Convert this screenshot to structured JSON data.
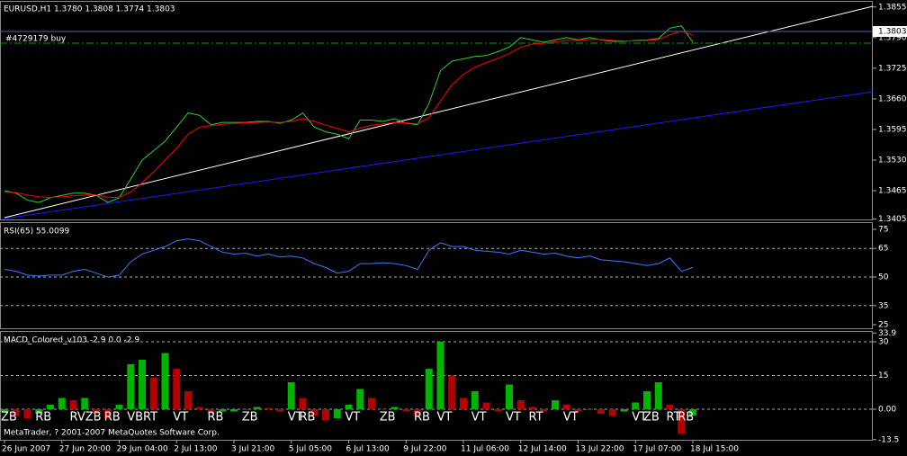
{
  "chart_data": [
    {
      "type": "line",
      "title": "EURUSD,H1  1.3780 1.3808 1.3774 1.3803",
      "series": [
        {
          "color": "#33cc33",
          "values": [
            1.3465,
            1.346,
            1.3445,
            1.344,
            1.345,
            1.3455,
            1.346,
            1.346,
            1.3455,
            1.344,
            1.345,
            1.349,
            1.353,
            1.355,
            1.357,
            1.36,
            1.363,
            1.3625,
            1.3605,
            1.361,
            1.361,
            1.361,
            1.3612,
            1.3612,
            1.3608,
            1.3615,
            1.363,
            1.36,
            1.359,
            1.3585,
            1.3575,
            1.3615,
            1.3615,
            1.3612,
            1.3618,
            1.3608,
            1.3605,
            1.365,
            1.372,
            1.374,
            1.3745,
            1.375,
            1.3752,
            1.376,
            1.377,
            1.379,
            1.3785,
            1.378,
            1.3785,
            1.379,
            1.3785,
            1.379,
            1.3785,
            1.3782,
            1.3782,
            1.3784,
            1.3785,
            1.3788,
            1.381,
            1.3815,
            1.378
          ]
        },
        {
          "color": "#ff0000",
          "values": [
            1.3462,
            1.3461,
            1.3456,
            1.3452,
            1.3451,
            1.3452,
            1.3454,
            1.3456,
            1.3456,
            1.3451,
            1.3451,
            1.3462,
            1.3482,
            1.3505,
            1.353,
            1.3555,
            1.3585,
            1.36,
            1.3603,
            1.3606,
            1.3608,
            1.3609,
            1.361,
            1.3611,
            1.361,
            1.3612,
            1.3618,
            1.3612,
            1.3604,
            1.3597,
            1.359,
            1.3598,
            1.3604,
            1.3607,
            1.361,
            1.3609,
            1.3607,
            1.362,
            1.3655,
            1.369,
            1.3712,
            1.3727,
            1.3737,
            1.3746,
            1.3756,
            1.377,
            1.3776,
            1.3778,
            1.3781,
            1.3784,
            1.3784,
            1.3786,
            1.3786,
            1.3784,
            1.3783,
            1.3783,
            1.3784,
            1.3786,
            1.3796,
            1.3804,
            1.3795
          ]
        }
      ],
      "last_price": 1.3803,
      "order_label": "#4729179 buy",
      "ylim": [
        1.3404,
        1.3866
      ],
      "yticks": [
        1.3405,
        1.3465,
        {
          "value": 1.353,
          "label": "1.3530"
        },
        1.3595,
        {
          "value": 1.366,
          "label": "1.3660"
        },
        1.3725,
        {
          "value": 1.379,
          "label": "1.3790"
        },
        1.3855
      ]
    },
    {
      "type": "line",
      "title": "RSI(65) 55.0099",
      "series": [
        {
          "color": "#3b78ff",
          "values": [
            54,
            53,
            51,
            50.5,
            51,
            51,
            53,
            54,
            52,
            50,
            51,
            58,
            62,
            64,
            66,
            69,
            70,
            69,
            66,
            63,
            62,
            62.5,
            61,
            62,
            60.5,
            61,
            60,
            57,
            55,
            52,
            53,
            57,
            57,
            57.5,
            57,
            56,
            54,
            64,
            68,
            66,
            66,
            64,
            63.5,
            63,
            62,
            64,
            63,
            62,
            62.5,
            61,
            60,
            61,
            59,
            58.5,
            58,
            57,
            56,
            57,
            60,
            53,
            55.0099
          ]
        }
      ],
      "ylim": [
        23.1,
        78.3
      ],
      "yticks": [
        25,
        35,
        50,
        65,
        75
      ],
      "levels": [
        35,
        50,
        65
      ]
    },
    {
      "type": "bar",
      "title": "MACD_Colored_v103 -2.9 0.0 -2.9",
      "values": [
        -1,
        -3,
        -4,
        -2,
        2,
        5,
        4,
        5,
        -2,
        -4,
        2,
        20,
        22,
        14,
        25,
        18,
        8,
        1,
        -2,
        -1,
        -1,
        0,
        1,
        0.5,
        -1,
        12,
        5,
        -3,
        -5,
        -4,
        2,
        9,
        5,
        0,
        1,
        -1,
        -3,
        18,
        30,
        15,
        5,
        8,
        3,
        -1,
        11,
        4,
        1,
        -1,
        4,
        2,
        -1,
        0,
        -2,
        -3,
        -1,
        3,
        8,
        12,
        2,
        -11,
        -2.9
      ],
      "colors": [
        "#00b400",
        "#b40000"
      ],
      "categories": [
        "26 Jun 2007",
        null,
        null,
        null,
        null,
        "27 Jun 20:00",
        null,
        null,
        null,
        null,
        "29 Jun 04:00",
        null,
        null,
        null,
        null,
        "2 Jul 13:00",
        null,
        null,
        null,
        null,
        "3 Jul 21:00",
        null,
        null,
        null,
        null,
        "5 Jul 05:00",
        null,
        null,
        null,
        null,
        "6 Jul 13:00",
        null,
        null,
        null,
        null,
        "9 Jul 22:00",
        null,
        null,
        null,
        null,
        "11 Jul 06:00",
        null,
        null,
        null,
        null,
        "12 Jul 14:00",
        null,
        null,
        null,
        null,
        "13 Jul 22:00",
        null,
        null,
        null,
        null,
        "17 Jul 07:00",
        null,
        null,
        null,
        null,
        "18 Jul 15:00"
      ],
      "annotations": [
        {
          "text": "ZB",
          "at": 0
        },
        {
          "text": "RB",
          "at": 3
        },
        {
          "text": "RVZB",
          "at": 6
        },
        {
          "text": "RB",
          "at": 9
        },
        {
          "text": "VBRT",
          "at": 11
        },
        {
          "text": "VT",
          "at": 15
        },
        {
          "text": "RB",
          "at": 18
        },
        {
          "text": "ZB",
          "at": 21
        },
        {
          "text": "VT",
          "at": 25
        },
        {
          "text": "RB",
          "at": 26
        },
        {
          "text": "VT",
          "at": 30
        },
        {
          "text": "ZB",
          "at": 33
        },
        {
          "text": "RB",
          "at": 36
        },
        {
          "text": "VT",
          "at": 38
        },
        {
          "text": "VT",
          "at": 41
        },
        {
          "text": "VT",
          "at": 44
        },
        {
          "text": "RT",
          "at": 46
        },
        {
          "text": "VT",
          "at": 49
        },
        {
          "text": "VT",
          "at": 55
        },
        {
          "text": "ZB",
          "at": 56
        },
        {
          "text": "RT",
          "at": 58
        },
        {
          "text": "RB",
          "at": 59
        }
      ],
      "ylim": [
        -13.6,
        34.4
      ],
      "yticks": [
        -13.5,
        {
          "value": 0,
          "label": "0.00"
        },
        15,
        30,
        33.9
      ],
      "levels": [
        0,
        15,
        30
      ]
    }
  ],
  "footer": "MetaTrader, ? 2001-2007 MetaQuotes Software Corp."
}
